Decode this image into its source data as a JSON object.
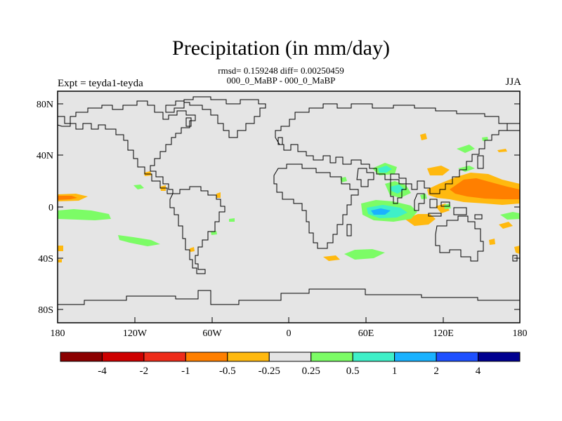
{
  "header": {
    "title": "Precipitation (in mm/day)",
    "stats_line": "rmsd= 0.159248 diff= 0.00250459",
    "comparison": "000_0_MaBP - 000_0_MaBP",
    "experiment": "Expt = teyda1-teyda",
    "season": "JJA"
  },
  "axes": {
    "lat_ticks": [
      "80N",
      "40N",
      "0",
      "40S",
      "80S"
    ],
    "lon_ticks": [
      "180",
      "120W",
      "60W",
      "0",
      "60E",
      "120E",
      "180"
    ]
  },
  "colorbar": {
    "labels": [
      "-4",
      "-2",
      "-1",
      "-0.5",
      "-0.25",
      "0.25",
      "0.5",
      "1",
      "2",
      "4"
    ],
    "colors": [
      "#8b0000",
      "#cd0000",
      "#ee2c1a",
      "#ff7f00",
      "#ffb90f",
      "#e5e5e5",
      "#7cfc66",
      "#3ff0c8",
      "#1ab2ff",
      "#1e50ff",
      "#000090"
    ]
  },
  "colors": {
    "background_land_ocean": "#e5e5e5",
    "coastline": "#000000"
  }
}
